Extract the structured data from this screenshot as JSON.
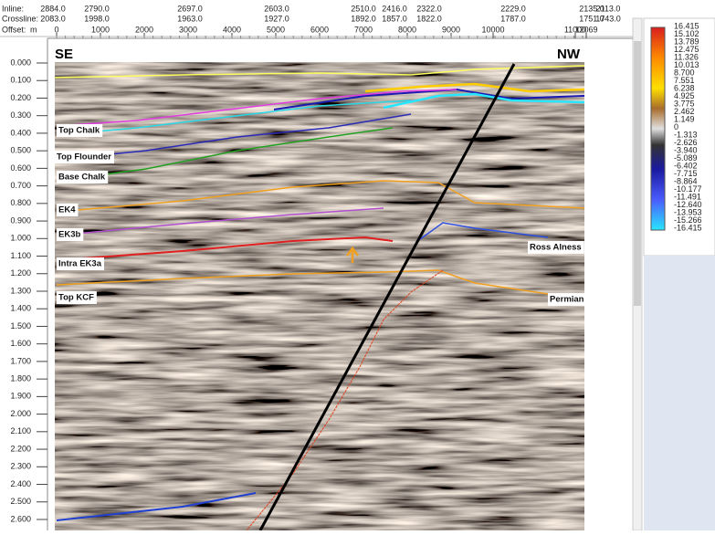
{
  "header": {
    "inline_label": "Inline:",
    "crossline_label": "Crossline:",
    "offset_label": "Offset:",
    "offset_unit": "m",
    "inline": [
      "2884.0",
      "2790.0",
      "2697.0",
      "2603.0",
      "2510.0",
      "2416.0",
      "2322.0",
      "2229.0",
      "2135.0",
      "2113.0"
    ],
    "crossline": [
      "2083.0",
      "1998.0",
      "1963.0",
      "1927.0",
      "1892.0",
      "1857.0",
      "1822.0",
      "1787.0",
      "1751.0",
      "1743.0"
    ],
    "offset": [
      "0",
      "1000",
      "2000",
      "3000",
      "4000",
      "5000",
      "6000",
      "7000",
      "8000",
      "9000",
      "10000",
      "11000",
      "12069"
    ]
  },
  "time_axis": [
    "0.000",
    "0.100",
    "0.200",
    "0.300",
    "0.400",
    "0.500",
    "0.600",
    "0.700",
    "0.800",
    "0.900",
    "1.000",
    "1.100",
    "1.200",
    "1.300",
    "1.400",
    "1.500",
    "1.600",
    "1.700",
    "1.800",
    "1.900",
    "2.000",
    "2.100",
    "2.200",
    "2.300",
    "2.400",
    "2.500",
    "2.600"
  ],
  "section": {
    "left_end": "SE",
    "right_end": "NW",
    "horizons": [
      "Top Chalk",
      "Top Flounder",
      "Base Chalk",
      "EK4",
      "EK3b",
      "Intra EK3a",
      "Top KCF",
      "Ross Alness",
      "Permian"
    ]
  },
  "color_bar": [
    "16.415",
    "15.102",
    "13.789",
    "12.475",
    "11.326",
    "10.013",
    "8.700",
    "7.551",
    "6.238",
    "4.925",
    "3.775",
    "2.462",
    "1.149",
    "0",
    "-1.313",
    "-2.626",
    "-3.940",
    "-5.089",
    "-6.402",
    "-7.715",
    "-8.864",
    "-10.177",
    "-11.491",
    "-12.640",
    "-13.953",
    "-15.266",
    "-16.415"
  ]
}
